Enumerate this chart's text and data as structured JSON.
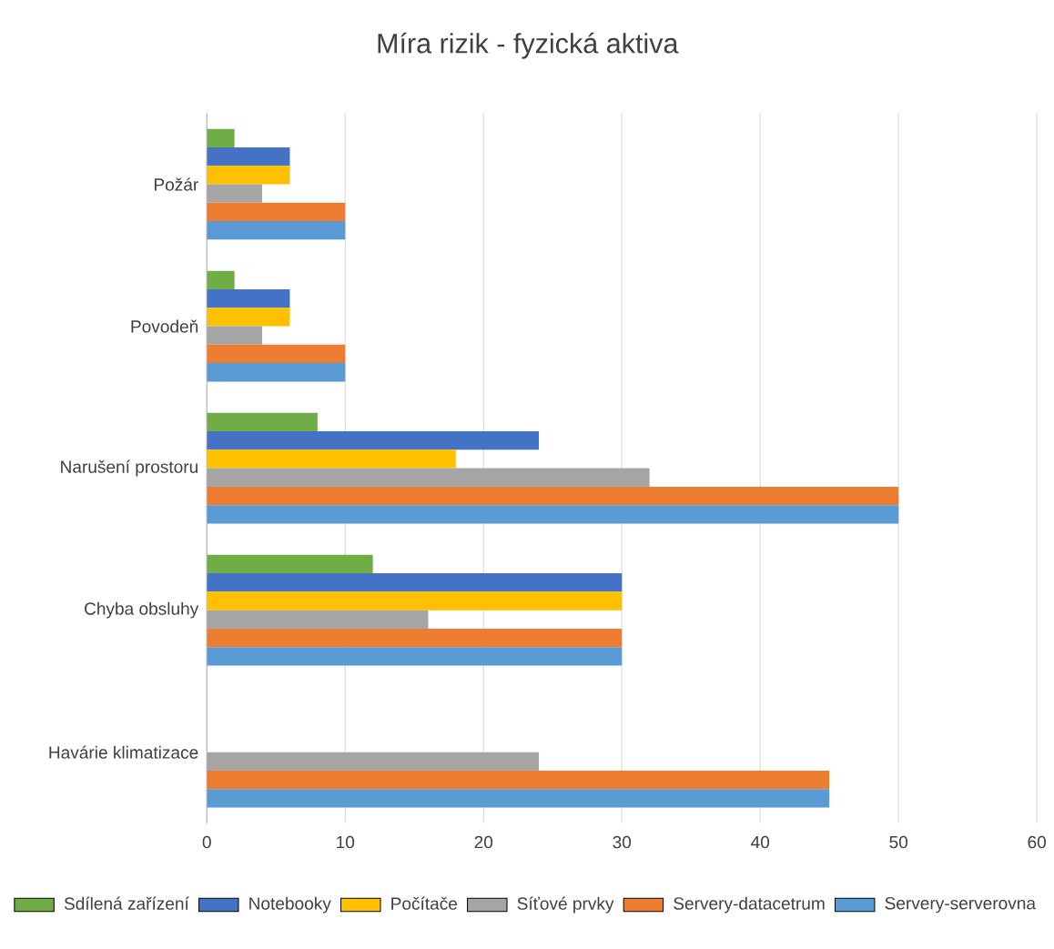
{
  "chart_data": {
    "type": "bar",
    "orientation": "horizontal",
    "title": "Míra rizik - fyzická aktiva",
    "categories": [
      "Požár",
      "Povodeň",
      "Narušení prostoru",
      "Chyba obsluhy",
      "Havárie klimatizace"
    ],
    "series": [
      {
        "name": "Sdílená zařízení",
        "color": "#70ad47",
        "values": [
          2,
          2,
          8,
          12,
          null
        ]
      },
      {
        "name": "Notebooky",
        "color": "#4472c4",
        "values": [
          6,
          6,
          24,
          30,
          null
        ]
      },
      {
        "name": "Počítače",
        "color": "#ffc000",
        "values": [
          6,
          6,
          18,
          30,
          null
        ]
      },
      {
        "name": "Síťové prvky",
        "color": "#a5a5a5",
        "values": [
          4,
          4,
          32,
          16,
          24
        ]
      },
      {
        "name": "Servery-datacetrum",
        "color": "#ed7d31",
        "values": [
          10,
          10,
          50,
          30,
          45
        ]
      },
      {
        "name": "Servery-serverovna",
        "color": "#5b9bd5",
        "values": [
          10,
          10,
          50,
          30,
          45
        ]
      }
    ],
    "xlim": [
      0,
      60
    ],
    "xticks": [
      0,
      10,
      20,
      30,
      40,
      50,
      60
    ],
    "grid": "x",
    "legend": "bottom"
  }
}
